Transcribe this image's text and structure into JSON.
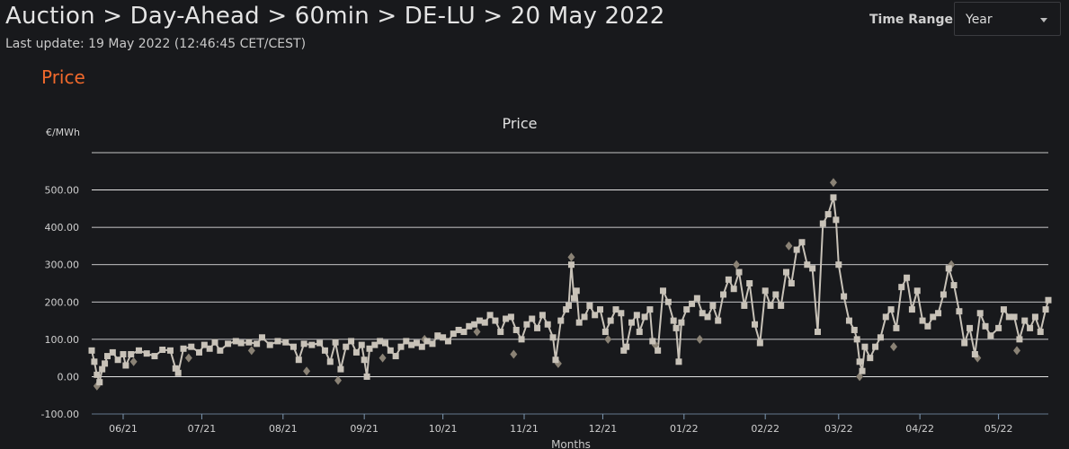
{
  "header": {
    "title": "Auction > Day-Ahead > 60min > DE-LU > 20 May 2022",
    "last_update": "Last update: 19 May 2022 (12:46:45 CET/CEST)"
  },
  "section_title": "Price",
  "controls": {
    "time_range_label": "Time Range",
    "time_range_value": "Year",
    "caret_icon": "chevron-down-icon"
  },
  "colors": {
    "accent": "#f0692c",
    "line": "#c8c2b8",
    "diamond": "#8a8275",
    "grid": "#ffffff"
  },
  "chart_data": {
    "type": "line",
    "title": "Price",
    "ylabel": "€/MWh",
    "xlabel": "Months",
    "ylim": [
      -100,
      600
    ],
    "yticks": [
      -100,
      0,
      100,
      200,
      300,
      400,
      500
    ],
    "ytick_labels": [
      "-100.00",
      "0.00",
      "100.00",
      "200.00",
      "300.00",
      "400.00",
      "500.00"
    ],
    "x_start": "2021-05-20",
    "x_end": "2022-05-20",
    "xtick_dates": [
      "2021-06-01",
      "2021-07-01",
      "2021-08-01",
      "2021-09-01",
      "2021-10-01",
      "2021-11-01",
      "2021-12-01",
      "2022-01-01",
      "2022-02-01",
      "2022-03-01",
      "2022-04-01",
      "2022-05-01"
    ],
    "xtick_labels": [
      "06/21",
      "07/21",
      "08/21",
      "09/21",
      "10/21",
      "11/21",
      "12/21",
      "01/22",
      "02/22",
      "03/22",
      "04/22",
      "05/22"
    ],
    "series": [
      {
        "marker": "square",
        "points": [
          [
            "2021-05-20",
            70
          ],
          [
            "2021-05-21",
            40
          ],
          [
            "2021-05-22",
            5
          ],
          [
            "2021-05-23",
            -15
          ],
          [
            "2021-05-24",
            20
          ],
          [
            "2021-05-25",
            35
          ],
          [
            "2021-05-26",
            55
          ],
          [
            "2021-05-28",
            65
          ],
          [
            "2021-05-30",
            45
          ],
          [
            "2021-06-01",
            60
          ],
          [
            "2021-06-02",
            30
          ],
          [
            "2021-06-04",
            60
          ],
          [
            "2021-06-07",
            70
          ],
          [
            "2021-06-10",
            62
          ],
          [
            "2021-06-13",
            55
          ],
          [
            "2021-06-16",
            72
          ],
          [
            "2021-06-19",
            70
          ],
          [
            "2021-06-21",
            22
          ],
          [
            "2021-06-22",
            10
          ],
          [
            "2021-06-24",
            75
          ],
          [
            "2021-06-27",
            80
          ],
          [
            "2021-06-30",
            65
          ],
          [
            "2021-07-02",
            85
          ],
          [
            "2021-07-04",
            75
          ],
          [
            "2021-07-06",
            92
          ],
          [
            "2021-07-08",
            70
          ],
          [
            "2021-07-11",
            88
          ],
          [
            "2021-07-14",
            95
          ],
          [
            "2021-07-16",
            90
          ],
          [
            "2021-07-19",
            92
          ],
          [
            "2021-07-22",
            88
          ],
          [
            "2021-07-24",
            105
          ],
          [
            "2021-07-27",
            85
          ],
          [
            "2021-07-30",
            95
          ],
          [
            "2021-08-02",
            92
          ],
          [
            "2021-08-05",
            80
          ],
          [
            "2021-08-07",
            45
          ],
          [
            "2021-08-09",
            88
          ],
          [
            "2021-08-12",
            85
          ],
          [
            "2021-08-15",
            90
          ],
          [
            "2021-08-17",
            70
          ],
          [
            "2021-08-19",
            40
          ],
          [
            "2021-08-21",
            92
          ],
          [
            "2021-08-23",
            20
          ],
          [
            "2021-08-25",
            80
          ],
          [
            "2021-08-27",
            95
          ],
          [
            "2021-08-29",
            65
          ],
          [
            "2021-08-31",
            85
          ],
          [
            "2021-09-01",
            45
          ],
          [
            "2021-09-02",
            0
          ],
          [
            "2021-09-03",
            75
          ],
          [
            "2021-09-05",
            85
          ],
          [
            "2021-09-07",
            95
          ],
          [
            "2021-09-09",
            90
          ],
          [
            "2021-09-11",
            70
          ],
          [
            "2021-09-13",
            55
          ],
          [
            "2021-09-15",
            80
          ],
          [
            "2021-09-17",
            95
          ],
          [
            "2021-09-19",
            85
          ],
          [
            "2021-09-21",
            90
          ],
          [
            "2021-09-23",
            80
          ],
          [
            "2021-09-25",
            95
          ],
          [
            "2021-09-27",
            88
          ],
          [
            "2021-09-29",
            110
          ],
          [
            "2021-10-01",
            105
          ],
          [
            "2021-10-03",
            95
          ],
          [
            "2021-10-05",
            115
          ],
          [
            "2021-10-07",
            125
          ],
          [
            "2021-10-09",
            120
          ],
          [
            "2021-10-11",
            135
          ],
          [
            "2021-10-13",
            140
          ],
          [
            "2021-10-15",
            150
          ],
          [
            "2021-10-17",
            145
          ],
          [
            "2021-10-19",
            165
          ],
          [
            "2021-10-21",
            150
          ],
          [
            "2021-10-23",
            120
          ],
          [
            "2021-10-25",
            155
          ],
          [
            "2021-10-27",
            160
          ],
          [
            "2021-10-29",
            125
          ],
          [
            "2021-10-31",
            100
          ],
          [
            "2021-11-02",
            140
          ],
          [
            "2021-11-04",
            155
          ],
          [
            "2021-11-06",
            130
          ],
          [
            "2021-11-08",
            165
          ],
          [
            "2021-11-10",
            140
          ],
          [
            "2021-11-12",
            105
          ],
          [
            "2021-11-13",
            45
          ],
          [
            "2021-11-15",
            150
          ],
          [
            "2021-11-17",
            180
          ],
          [
            "2021-11-18",
            190
          ],
          [
            "2021-11-19",
            300
          ],
          [
            "2021-11-20",
            210
          ],
          [
            "2021-11-21",
            230
          ],
          [
            "2021-11-22",
            145
          ],
          [
            "2021-11-24",
            160
          ],
          [
            "2021-11-26",
            190
          ],
          [
            "2021-11-28",
            165
          ],
          [
            "2021-11-30",
            180
          ],
          [
            "2021-12-02",
            120
          ],
          [
            "2021-12-04",
            150
          ],
          [
            "2021-12-06",
            180
          ],
          [
            "2021-12-08",
            170
          ],
          [
            "2021-12-09",
            70
          ],
          [
            "2021-12-10",
            80
          ],
          [
            "2021-12-12",
            145
          ],
          [
            "2021-12-14",
            165
          ],
          [
            "2021-12-15",
            120
          ],
          [
            "2021-12-17",
            160
          ],
          [
            "2021-12-19",
            180
          ],
          [
            "2021-12-20",
            95
          ],
          [
            "2021-12-22",
            70
          ],
          [
            "2021-12-24",
            230
          ],
          [
            "2021-12-26",
            200
          ],
          [
            "2021-12-28",
            150
          ],
          [
            "2021-12-29",
            130
          ],
          [
            "2021-12-30",
            40
          ],
          [
            "2021-12-31",
            145
          ],
          [
            "2022-01-02",
            180
          ],
          [
            "2022-01-04",
            195
          ],
          [
            "2022-01-06",
            210
          ],
          [
            "2022-01-08",
            170
          ],
          [
            "2022-01-10",
            160
          ],
          [
            "2022-01-12",
            190
          ],
          [
            "2022-01-14",
            150
          ],
          [
            "2022-01-16",
            220
          ],
          [
            "2022-01-18",
            260
          ],
          [
            "2022-01-20",
            235
          ],
          [
            "2022-01-22",
            280
          ],
          [
            "2022-01-24",
            190
          ],
          [
            "2022-01-26",
            250
          ],
          [
            "2022-01-28",
            140
          ],
          [
            "2022-01-30",
            90
          ],
          [
            "2022-02-01",
            230
          ],
          [
            "2022-02-03",
            190
          ],
          [
            "2022-02-05",
            220
          ],
          [
            "2022-02-07",
            190
          ],
          [
            "2022-02-09",
            280
          ],
          [
            "2022-02-11",
            250
          ],
          [
            "2022-02-13",
            340
          ],
          [
            "2022-02-15",
            360
          ],
          [
            "2022-02-17",
            300
          ],
          [
            "2022-02-19",
            290
          ],
          [
            "2022-02-21",
            120
          ],
          [
            "2022-02-23",
            410
          ],
          [
            "2022-02-25",
            435
          ],
          [
            "2022-02-27",
            480
          ],
          [
            "2022-02-28",
            420
          ],
          [
            "2022-03-01",
            300
          ],
          [
            "2022-03-03",
            215
          ],
          [
            "2022-03-05",
            150
          ],
          [
            "2022-03-07",
            125
          ],
          [
            "2022-03-08",
            100
          ],
          [
            "2022-03-09",
            40
          ],
          [
            "2022-03-10",
            15
          ],
          [
            "2022-03-11",
            80
          ],
          [
            "2022-03-13",
            50
          ],
          [
            "2022-03-15",
            80
          ],
          [
            "2022-03-17",
            105
          ],
          [
            "2022-03-19",
            160
          ],
          [
            "2022-03-21",
            180
          ],
          [
            "2022-03-23",
            130
          ],
          [
            "2022-03-25",
            240
          ],
          [
            "2022-03-27",
            265
          ],
          [
            "2022-03-29",
            180
          ],
          [
            "2022-03-31",
            230
          ],
          [
            "2022-04-02",
            150
          ],
          [
            "2022-04-04",
            135
          ],
          [
            "2022-04-06",
            160
          ],
          [
            "2022-04-08",
            170
          ],
          [
            "2022-04-10",
            220
          ],
          [
            "2022-04-12",
            290
          ],
          [
            "2022-04-14",
            245
          ],
          [
            "2022-04-16",
            175
          ],
          [
            "2022-04-18",
            90
          ],
          [
            "2022-04-20",
            130
          ],
          [
            "2022-04-22",
            60
          ],
          [
            "2022-04-24",
            170
          ],
          [
            "2022-04-26",
            135
          ],
          [
            "2022-04-28",
            110
          ],
          [
            "2022-05-01",
            130
          ],
          [
            "2022-05-03",
            180
          ],
          [
            "2022-05-05",
            160
          ],
          [
            "2022-05-07",
            160
          ],
          [
            "2022-05-09",
            100
          ],
          [
            "2022-05-11",
            150
          ],
          [
            "2022-05-13",
            130
          ],
          [
            "2022-05-15",
            160
          ],
          [
            "2022-05-17",
            120
          ],
          [
            "2022-05-19",
            180
          ],
          [
            "2022-05-20",
            205
          ]
        ]
      },
      {
        "marker": "diamond",
        "points": [
          [
            "2021-05-22",
            -25
          ],
          [
            "2021-06-05",
            40
          ],
          [
            "2021-06-26",
            50
          ],
          [
            "2021-07-20",
            70
          ],
          [
            "2021-08-10",
            15
          ],
          [
            "2021-08-22",
            -10
          ],
          [
            "2021-09-08",
            50
          ],
          [
            "2021-09-24",
            100
          ],
          [
            "2021-10-14",
            120
          ],
          [
            "2021-10-28",
            60
          ],
          [
            "2021-11-14",
            35
          ],
          [
            "2021-11-19",
            320
          ],
          [
            "2021-12-03",
            100
          ],
          [
            "2021-12-21",
            85
          ],
          [
            "2022-01-07",
            100
          ],
          [
            "2022-01-21",
            300
          ],
          [
            "2022-02-10",
            350
          ],
          [
            "2022-02-27",
            520
          ],
          [
            "2022-03-09",
            0
          ],
          [
            "2022-03-22",
            80
          ],
          [
            "2022-04-13",
            300
          ],
          [
            "2022-04-23",
            50
          ],
          [
            "2022-05-08",
            70
          ]
        ]
      }
    ]
  }
}
